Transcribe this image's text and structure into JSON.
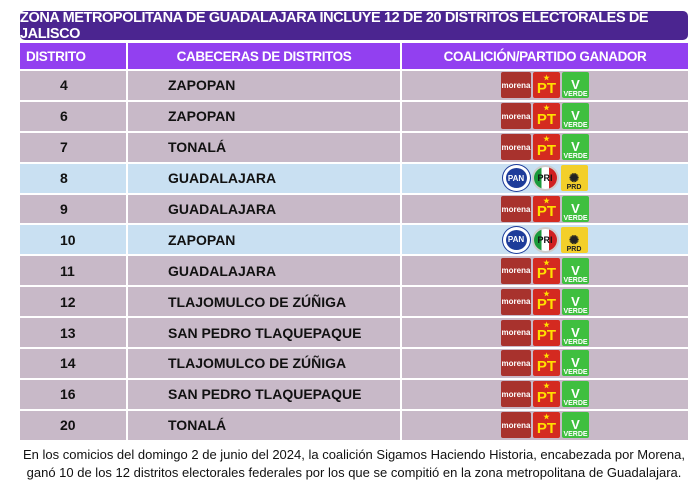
{
  "title": "ZONA METROPOLITANA DE GUADALAJARA INCLUYE 12 DE 20  DISTRITOS ELECTORALES DE JALISCO",
  "headers": [
    "DISTRITO",
    "CABECERAS DE DISTRITOS",
    "COALICIÓN/PARTIDO GANADOR"
  ],
  "rows": [
    {
      "distrito": "4",
      "cabecera": "ZAPOPAN",
      "ganador": "morena-pt-verde"
    },
    {
      "distrito": "6",
      "cabecera": "ZAPOPAN",
      "ganador": "morena-pt-verde"
    },
    {
      "distrito": "7",
      "cabecera": "TONALÁ",
      "ganador": "morena-pt-verde"
    },
    {
      "distrito": "8",
      "cabecera": "GUADALAJARA",
      "ganador": "pan-pri-prd"
    },
    {
      "distrito": "9",
      "cabecera": "GUADALAJARA",
      "ganador": "morena-pt-verde"
    },
    {
      "distrito": "10",
      "cabecera": "ZAPOPAN",
      "ganador": "pan-pri-prd"
    },
    {
      "distrito": "11",
      "cabecera": "GUADALAJARA",
      "ganador": "morena-pt-verde"
    },
    {
      "distrito": "12",
      "cabecera": "TLAJOMULCO DE ZÚÑIGA",
      "ganador": "morena-pt-verde"
    },
    {
      "distrito": "13",
      "cabecera": "SAN PEDRO TLAQUEPAQUE",
      "ganador": "morena-pt-verde"
    },
    {
      "distrito": "14",
      "cabecera": "TLAJOMULCO DE ZÚÑIGA",
      "ganador": "morena-pt-verde"
    },
    {
      "distrito": "16",
      "cabecera": "SAN PEDRO TLAQUEPAQUE",
      "ganador": "morena-pt-verde"
    },
    {
      "distrito": "20",
      "cabecera": "TONALÁ",
      "ganador": "morena-pt-verde"
    }
  ],
  "logos": {
    "morena": "morena",
    "pt": "PT",
    "verde": "VERDE",
    "pan": "PAN",
    "pri": "PRI",
    "prd": "PRD"
  },
  "footer": {
    "line1": "En los comicios del domingo 2 de junio del 2024, la coalición Sigamos Haciendo Historia, encabezada por Morena,",
    "line2": "ganó 10 de los 12 distritos electorales federales por los que se compitió en la zona metropolitana de Guadalajara."
  },
  "colors": {
    "title_bg": "#4b2590",
    "header_bg": "#9240f0",
    "row_morena": "#c8b9c8",
    "row_pan": "#c9e0f2"
  }
}
